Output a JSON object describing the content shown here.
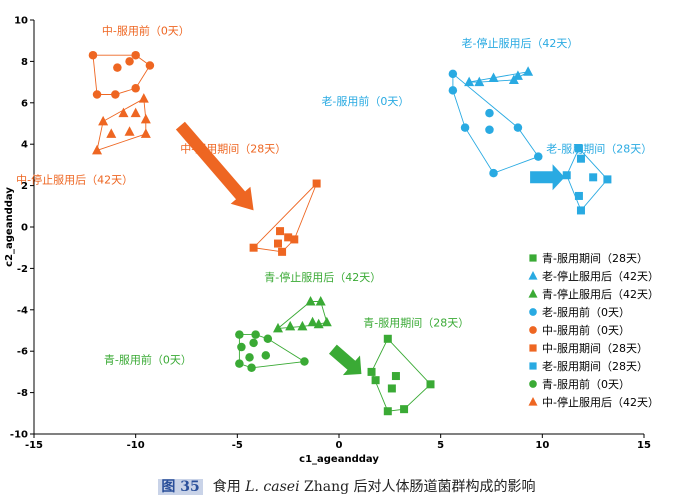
{
  "chart_data": {
    "type": "scatter",
    "xlabel": "c1_ageandday",
    "ylabel": "c2_ageandday",
    "xlim": [
      -15,
      15
    ],
    "ylim": [
      -10,
      10
    ],
    "xticks": [
      -15,
      -10,
      -5,
      0,
      5,
      10,
      15
    ],
    "yticks": [
      -10,
      -8,
      -6,
      -4,
      -2,
      0,
      2,
      4,
      6,
      8,
      10
    ],
    "legend_position": "bottom-right",
    "series": [
      {
        "name": "青-服用期间（28天）",
        "color": "#3aaa35",
        "marker": "square",
        "points": [
          [
            2.4,
            -5.4
          ],
          [
            1.6,
            -7.0
          ],
          [
            1.8,
            -7.4
          ],
          [
            2.8,
            -7.2
          ],
          [
            2.6,
            -7.8
          ],
          [
            4.5,
            -7.6
          ],
          [
            3.2,
            -8.8
          ],
          [
            2.4,
            -8.9
          ]
        ]
      },
      {
        "name": "老-停止服用后（42天）",
        "color": "#29aae2",
        "marker": "triangle",
        "points": [
          [
            6.4,
            7.0
          ],
          [
            6.9,
            7.0
          ],
          [
            7.6,
            7.2
          ],
          [
            8.6,
            7.1
          ],
          [
            8.8,
            7.3
          ],
          [
            9.3,
            7.5
          ]
        ]
      },
      {
        "name": "青-停止服用后（42天）",
        "color": "#3aaa35",
        "marker": "triangle",
        "points": [
          [
            -3.0,
            -4.9
          ],
          [
            -2.4,
            -4.8
          ],
          [
            -1.8,
            -4.8
          ],
          [
            -1.3,
            -4.6
          ],
          [
            -1.0,
            -4.7
          ],
          [
            -0.6,
            -4.6
          ],
          [
            -1.4,
            -3.6
          ],
          [
            -0.9,
            -3.6
          ]
        ]
      },
      {
        "name": "老-服用前（0天）",
        "color": "#29aae2",
        "marker": "circle",
        "points": [
          [
            5.6,
            7.4
          ],
          [
            5.6,
            6.6
          ],
          [
            6.2,
            4.8
          ],
          [
            7.4,
            4.7
          ],
          [
            7.4,
            5.5
          ],
          [
            8.8,
            4.8
          ],
          [
            9.8,
            3.4
          ],
          [
            7.6,
            2.6
          ]
        ]
      },
      {
        "name": "中-服用前（0天）",
        "color": "#ee6622",
        "marker": "circle",
        "points": [
          [
            -12.1,
            8.3
          ],
          [
            -10.9,
            7.7
          ],
          [
            -10.3,
            8.0
          ],
          [
            -10.0,
            8.3
          ],
          [
            -9.3,
            7.8
          ],
          [
            -11.9,
            6.4
          ],
          [
            -11.0,
            6.4
          ],
          [
            -10.0,
            6.7
          ]
        ]
      },
      {
        "name": "中-服用期间（28天）",
        "color": "#ee6622",
        "marker": "square",
        "points": [
          [
            -4.2,
            -1.0
          ],
          [
            -2.9,
            -0.2
          ],
          [
            -2.5,
            -0.5
          ],
          [
            -2.2,
            -0.6
          ],
          [
            -3.0,
            -0.8
          ],
          [
            -2.8,
            -1.2
          ],
          [
            -1.1,
            2.1
          ]
        ]
      },
      {
        "name": "老-服用期间（28天）",
        "color": "#29aae2",
        "marker": "square",
        "points": [
          [
            11.8,
            3.8
          ],
          [
            11.9,
            3.3
          ],
          [
            12.5,
            2.4
          ],
          [
            13.2,
            2.3
          ],
          [
            11.2,
            2.5
          ],
          [
            11.8,
            1.5
          ],
          [
            11.9,
            0.8
          ]
        ]
      },
      {
        "name": "青-服用前（0天）",
        "color": "#3aaa35",
        "marker": "circle",
        "points": [
          [
            -4.9,
            -5.2
          ],
          [
            -4.1,
            -5.2
          ],
          [
            -4.8,
            -5.8
          ],
          [
            -4.2,
            -5.6
          ],
          [
            -3.5,
            -5.4
          ],
          [
            -3.6,
            -6.2
          ],
          [
            -4.4,
            -6.3
          ],
          [
            -1.7,
            -6.5
          ],
          [
            -4.9,
            -6.6
          ],
          [
            -4.3,
            -6.8
          ]
        ]
      },
      {
        "name": "中-停止服用后（42天）",
        "color": "#ee6622",
        "marker": "triangle",
        "points": [
          [
            -11.6,
            5.1
          ],
          [
            -10.6,
            5.5
          ],
          [
            -10.0,
            5.5
          ],
          [
            -9.6,
            6.2
          ],
          [
            -9.5,
            5.2
          ],
          [
            -11.2,
            4.5
          ],
          [
            -10.3,
            4.6
          ],
          [
            -9.5,
            4.5
          ],
          [
            -11.9,
            3.7
          ]
        ]
      }
    ],
    "annotations": [
      {
        "text": "中-服用前（0天）",
        "color": "#ee6622",
        "x": -9.5,
        "y": 9.3
      },
      {
        "text": "中-停止服用后（42天）",
        "color": "#ee6622",
        "x": -13.0,
        "y": 2.1
      },
      {
        "text": "中-服用期间（28天）",
        "color": "#ee6622",
        "x": -5.2,
        "y": 3.6
      },
      {
        "text": "老-停止服用后（42天）",
        "color": "#29aae2",
        "x": 8.9,
        "y": 8.7
      },
      {
        "text": "老-服用前（0天）",
        "color": "#29aae2",
        "x": 1.3,
        "y": 5.9
      },
      {
        "text": "老-服用期间（28天）",
        "color": "#29aae2",
        "x": 12.8,
        "y": 3.6
      },
      {
        "text": "青-停止服用后（42天）",
        "color": "#3aaa35",
        "x": -0.8,
        "y": -2.6
      },
      {
        "text": "青-服用期间（28天）",
        "color": "#3aaa35",
        "x": 3.8,
        "y": -4.8
      },
      {
        "text": "青-服用前（0天）",
        "color": "#3aaa35",
        "x": -9.4,
        "y": -6.6
      }
    ],
    "arrows": [
      {
        "color": "#ee6622",
        "from": [
          -7.8,
          4.9
        ],
        "to": [
          -4.2,
          0.8
        ]
      },
      {
        "color": "#3aaa35",
        "from": [
          -0.3,
          -5.9
        ],
        "to": [
          1.1,
          -7.1
        ]
      },
      {
        "color": "#29aae2",
        "from": [
          9.4,
          2.4
        ],
        "to": [
          11.1,
          2.4
        ]
      }
    ]
  },
  "caption": {
    "figure_number": "图 35",
    "text_before": "食用",
    "species": "L. casei",
    "text_after": "Zhang 后对人体肠道菌群构成的影响"
  }
}
